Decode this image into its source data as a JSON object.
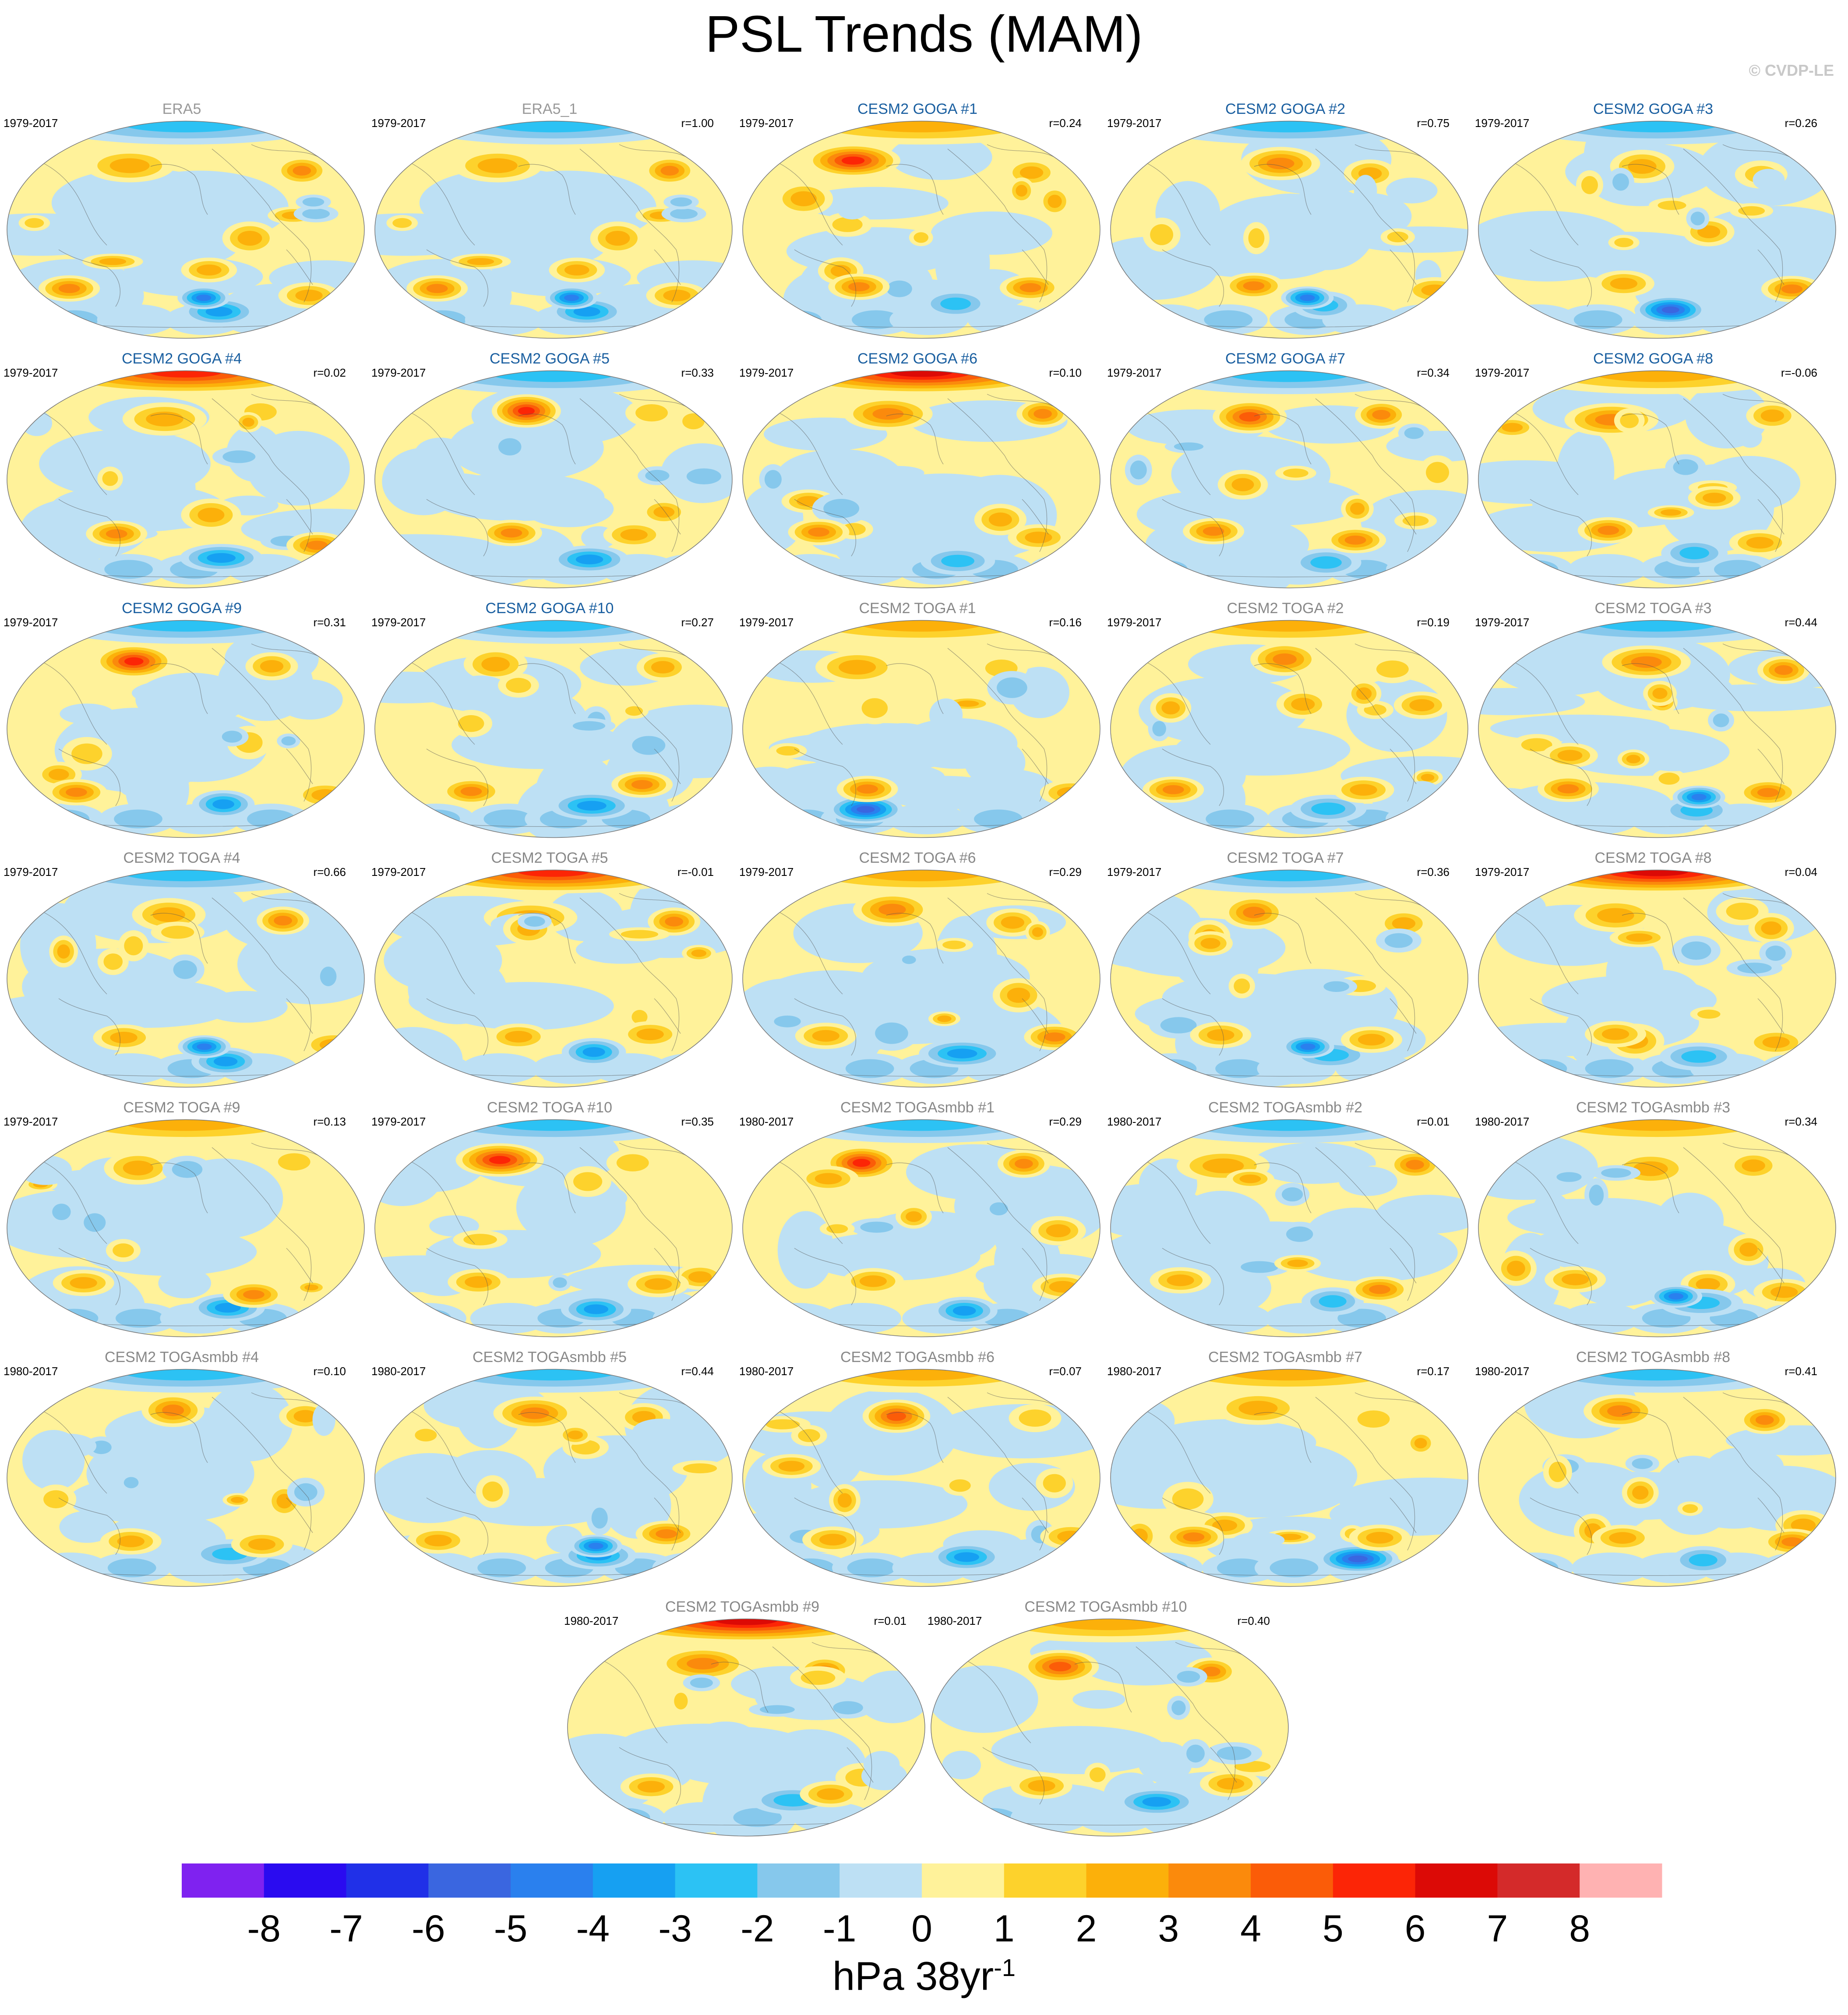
{
  "title": "PSL Trends (MAM)",
  "copyright": "© CVDP-LE",
  "chart_data": {
    "type": "heatmap",
    "title": "PSL Trends (MAM)",
    "variable": "PSL",
    "season": "MAM",
    "projection": "global Robinson map",
    "units": "hPa 38yr",
    "units_exponent": "-1",
    "colorbar": {
      "ticks": [
        "-8",
        "-7",
        "-6",
        "-5",
        "-4",
        "-3",
        "-2",
        "-1",
        "0",
        "1",
        "2",
        "3",
        "4",
        "5",
        "6",
        "7",
        "8"
      ],
      "colors": [
        "#7f22f0",
        "#2a0bf0",
        "#2030e8",
        "#3a66e0",
        "#2a80ee",
        "#16a0f2",
        "#2cc2f4",
        "#86c8ec",
        "#bde0f4",
        "#fff29a",
        "#fdd22c",
        "#fcb00a",
        "#fb8a0c",
        "#fb5c08",
        "#fc2506",
        "#dc0a06",
        "#d42a2a",
        "#ffb2b2"
      ]
    },
    "panels": [
      {
        "title": "ERA5",
        "years": "1979-2017",
        "r": "",
        "tcolor": "#999999",
        "seed": 1,
        "accent": "base"
      },
      {
        "title": "ERA5_1",
        "years": "1979-2017",
        "r": "r=1.00",
        "tcolor": "#999999",
        "seed": 1,
        "accent": "base"
      },
      {
        "title": "CESM2 GOGA #1",
        "years": "1979-2017",
        "r": "r=0.24",
        "tcolor": "#1a5fa0",
        "seed": 3,
        "accent": "npac"
      },
      {
        "title": "CESM2 GOGA #2",
        "years": "1979-2017",
        "r": "r=0.75",
        "tcolor": "#1a5fa0",
        "seed": 4,
        "accent": "base"
      },
      {
        "title": "CESM2 GOGA #3",
        "years": "1979-2017",
        "r": "r=0.26",
        "tcolor": "#1a5fa0",
        "seed": 5,
        "accent": "south"
      },
      {
        "title": "CESM2 GOGA #4",
        "years": "1979-2017",
        "r": "r=0.02",
        "tcolor": "#1a5fa0",
        "seed": 6,
        "accent": "arctic"
      },
      {
        "title": "CESM2 GOGA #5",
        "years": "1979-2017",
        "r": "r=0.33",
        "tcolor": "#1a5fa0",
        "seed": 7,
        "accent": "npac"
      },
      {
        "title": "CESM2 GOGA #6",
        "years": "1979-2017",
        "r": "r=0.10",
        "tcolor": "#1a5fa0",
        "seed": 8,
        "accent": "arctic"
      },
      {
        "title": "CESM2 GOGA #7",
        "years": "1979-2017",
        "r": "r=0.34",
        "tcolor": "#1a5fa0",
        "seed": 9,
        "accent": "npac"
      },
      {
        "title": "CESM2 GOGA #8",
        "years": "1979-2017",
        "r": "r=-0.06",
        "tcolor": "#1a5fa0",
        "seed": 10,
        "accent": "calm"
      },
      {
        "title": "CESM2 GOGA #9",
        "years": "1979-2017",
        "r": "r=0.31",
        "tcolor": "#1a5fa0",
        "seed": 11,
        "accent": "npac"
      },
      {
        "title": "CESM2 GOGA #10",
        "years": "1979-2017",
        "r": "r=0.27",
        "tcolor": "#1a5fa0",
        "seed": 12,
        "accent": "calm"
      },
      {
        "title": "CESM2 TOGA #1",
        "years": "1979-2017",
        "r": "r=0.16",
        "tcolor": "#888888",
        "seed": 13,
        "accent": "south"
      },
      {
        "title": "CESM2 TOGA #2",
        "years": "1979-2017",
        "r": "r=0.19",
        "tcolor": "#888888",
        "seed": 14,
        "accent": "calm"
      },
      {
        "title": "CESM2 TOGA #3",
        "years": "1979-2017",
        "r": "r=0.44",
        "tcolor": "#888888",
        "seed": 15,
        "accent": "base"
      },
      {
        "title": "CESM2 TOGA #4",
        "years": "1979-2017",
        "r": "r=0.66",
        "tcolor": "#888888",
        "seed": 16,
        "accent": "base"
      },
      {
        "title": "CESM2 TOGA #5",
        "years": "1979-2017",
        "r": "r=-0.01",
        "tcolor": "#888888",
        "seed": 17,
        "accent": "arctic"
      },
      {
        "title": "CESM2 TOGA #6",
        "years": "1979-2017",
        "r": "r=0.29",
        "tcolor": "#888888",
        "seed": 18,
        "accent": "calm"
      },
      {
        "title": "CESM2 TOGA #7",
        "years": "1979-2017",
        "r": "r=0.36",
        "tcolor": "#888888",
        "seed": 19,
        "accent": "base"
      },
      {
        "title": "CESM2 TOGA #8",
        "years": "1979-2017",
        "r": "r=0.04",
        "tcolor": "#888888",
        "seed": 20,
        "accent": "arctic"
      },
      {
        "title": "CESM2 TOGA #9",
        "years": "1979-2017",
        "r": "r=0.13",
        "tcolor": "#888888",
        "seed": 21,
        "accent": "calm"
      },
      {
        "title": "CESM2 TOGA #10",
        "years": "1979-2017",
        "r": "r=0.35",
        "tcolor": "#888888",
        "seed": 22,
        "accent": "npac"
      },
      {
        "title": "CESM2 TOGAsmbb #1",
        "years": "1980-2017",
        "r": "r=0.29",
        "tcolor": "#888888",
        "seed": 23,
        "accent": "npac"
      },
      {
        "title": "CESM2 TOGAsmbb #2",
        "years": "1980-2017",
        "r": "r=0.01",
        "tcolor": "#888888",
        "seed": 24,
        "accent": "calm"
      },
      {
        "title": "CESM2 TOGAsmbb #3",
        "years": "1980-2017",
        "r": "r=0.34",
        "tcolor": "#888888",
        "seed": 25,
        "accent": "base"
      },
      {
        "title": "CESM2 TOGAsmbb #4",
        "years": "1980-2017",
        "r": "r=0.10",
        "tcolor": "#888888",
        "seed": 26,
        "accent": "calm"
      },
      {
        "title": "CESM2 TOGAsmbb #5",
        "years": "1980-2017",
        "r": "r=0.44",
        "tcolor": "#888888",
        "seed": 27,
        "accent": "base"
      },
      {
        "title": "CESM2 TOGAsmbb #6",
        "years": "1980-2017",
        "r": "r=0.07",
        "tcolor": "#888888",
        "seed": 28,
        "accent": "npac"
      },
      {
        "title": "CESM2 TOGAsmbb #7",
        "years": "1980-2017",
        "r": "r=0.17",
        "tcolor": "#888888",
        "seed": 29,
        "accent": "south"
      },
      {
        "title": "CESM2 TOGAsmbb #8",
        "years": "1980-2017",
        "r": "r=0.41",
        "tcolor": "#888888",
        "seed": 30,
        "accent": "calm"
      },
      {
        "title": "CESM2 TOGAsmbb #9",
        "years": "1980-2017",
        "r": "r=0.01",
        "tcolor": "#888888",
        "seed": 31,
        "accent": "arctic"
      },
      {
        "title": "CESM2 TOGAsmbb #10",
        "years": "1980-2017",
        "r": "r=0.40",
        "tcolor": "#888888",
        "seed": 32,
        "accent": "npac"
      }
    ]
  }
}
